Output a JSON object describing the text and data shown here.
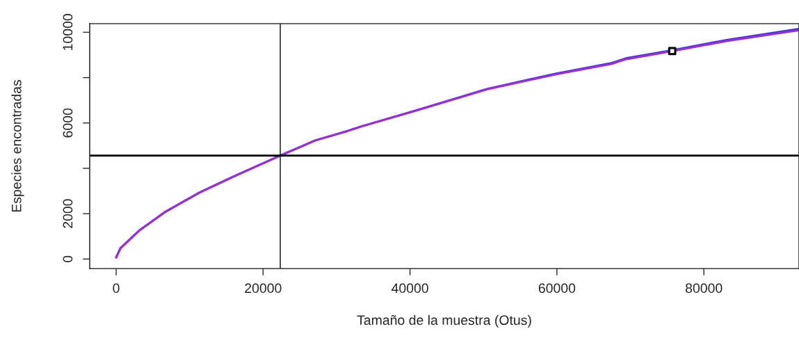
{
  "chart_data": {
    "type": "line",
    "xlabel": "Tamaño de la muestra (Otus)",
    "ylabel": "Especies encontradas",
    "xlim": [
      -3600,
      92950
    ],
    "ylim": [
      -420,
      10380
    ],
    "xticks": [
      0,
      20000,
      40000,
      60000,
      80000
    ],
    "yticks": [
      0,
      2000,
      {
        "value": 4000,
        "label": null
      },
      6000,
      {
        "value": 8000,
        "label": null
      },
      10000
    ],
    "grid": false,
    "legend": false,
    "series": [
      {
        "color": "#3a3ad0",
        "x": [
          0,
          600,
          3120,
          6590,
          11330,
          16060,
          22340,
          27100,
          31520,
          33410,
          40980,
          50450,
          59910,
          67490,
          69380,
          75690,
          83260,
          92950
        ],
        "values": [
          70,
          480,
          1250,
          2060,
          2930,
          3650,
          4560,
          5230,
          5650,
          5850,
          6570,
          7500,
          8180,
          8650,
          8850,
          9210,
          9670,
          10150
        ]
      },
      {
        "color": "#9b30d0",
        "x": [
          0,
          600,
          3120,
          6590,
          11330,
          16060,
          22340,
          27100,
          31520,
          33410,
          40980,
          50450,
          59910,
          67490,
          69380,
          75690,
          83260,
          92950
        ],
        "values": [
          70,
          480,
          1250,
          2060,
          2930,
          3650,
          4560,
          5230,
          5650,
          5850,
          6560,
          7480,
          8150,
          8610,
          8810,
          9170,
          9620,
          10090
        ]
      },
      {
        "type": "scatter",
        "color": "#000000",
        "marker": "square",
        "x": [
          75690
        ],
        "values": [
          9170
        ]
      }
    ],
    "ref_lines": [
      {
        "axis": "y",
        "value": 4560,
        "color": "#000000",
        "line_style": "solid"
      },
      {
        "axis": "x",
        "value": 22340,
        "color": "#000000",
        "line_style": "solid"
      }
    ]
  }
}
